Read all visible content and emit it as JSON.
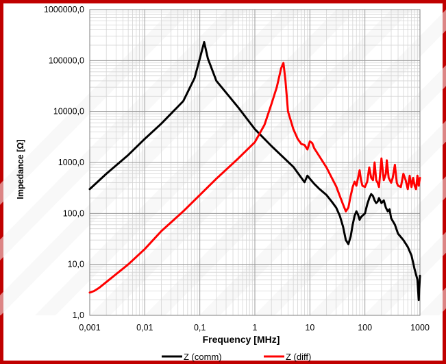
{
  "chart_data": {
    "type": "line",
    "title": "",
    "xlabel": "Frequency  [MHz]",
    "ylabel": "Impedance [Ω]",
    "x_scale": "log",
    "y_scale": "log",
    "xlim": [
      0.001,
      1000
    ],
    "ylim": [
      1,
      1000000
    ],
    "grid": true,
    "legend_placement": "bottom",
    "x_tick_labels": [
      "0,001",
      "0,01",
      "0,1",
      "1",
      "10",
      "100",
      "1000"
    ],
    "y_tick_labels": [
      "1,0",
      "10,0",
      "100,0",
      "1000,0",
      "10000,0",
      "100000,0",
      "1000000,0"
    ],
    "series": [
      {
        "name": "Z  (comm)",
        "color": "#000000",
        "x": [
          0.001,
          0.002,
          0.005,
          0.01,
          0.02,
          0.05,
          0.08,
          0.1,
          0.12,
          0.14,
          0.2,
          0.5,
          1,
          2,
          5,
          8,
          9,
          10,
          12,
          15,
          20,
          25,
          30,
          35,
          40,
          45,
          50,
          55,
          60,
          65,
          70,
          75,
          80,
          85,
          90,
          100,
          110,
          120,
          130,
          140,
          150,
          160,
          170,
          180,
          200,
          220,
          240,
          260,
          280,
          300,
          350,
          400,
          500,
          600,
          700,
          800,
          900,
          950,
          1000
        ],
        "y": [
          300,
          600,
          1400,
          2900,
          5800,
          16000,
          45000,
          110000,
          230000,
          110000,
          40000,
          12000,
          4500,
          2100,
          820,
          410,
          550,
          480,
          380,
          300,
          230,
          170,
          130,
          90,
          55,
          30,
          25,
          35,
          60,
          90,
          110,
          95,
          75,
          85,
          90,
          100,
          150,
          200,
          240,
          220,
          180,
          160,
          170,
          200,
          160,
          180,
          130,
          110,
          120,
          80,
          60,
          40,
          30,
          22,
          15,
          8,
          5,
          2,
          6
        ]
      },
      {
        "name": "Z (diff)",
        "color": "#ff0000",
        "x": [
          0.001,
          0.0012,
          0.0015,
          0.002,
          0.005,
          0.01,
          0.02,
          0.05,
          0.1,
          0.2,
          0.5,
          1,
          1.5,
          2,
          2.5,
          3,
          3.3,
          3.6,
          4,
          5,
          6,
          7,
          8,
          9,
          10,
          11,
          12,
          15,
          20,
          25,
          30,
          35,
          40,
          45,
          50,
          55,
          60,
          65,
          70,
          75,
          80,
          85,
          90,
          100,
          110,
          120,
          130,
          140,
          150,
          160,
          170,
          180,
          200,
          220,
          240,
          250,
          270,
          300,
          320,
          350,
          380,
          400,
          450,
          500,
          550,
          600,
          650,
          700,
          750,
          800,
          850,
          900,
          950,
          1000
        ],
        "y": [
          2.8,
          3.0,
          3.5,
          4.5,
          10,
          20,
          45,
          110,
          230,
          480,
          1200,
          2500,
          5500,
          14000,
          30000,
          70000,
          90000,
          40000,
          10000,
          4500,
          2900,
          2300,
          2200,
          1800,
          2600,
          2400,
          1900,
          1300,
          800,
          500,
          340,
          220,
          150,
          110,
          130,
          220,
          330,
          420,
          350,
          500,
          700,
          450,
          350,
          330,
          420,
          800,
          500,
          450,
          1000,
          450,
          400,
          330,
          1200,
          450,
          600,
          1100,
          500,
          400,
          500,
          900,
          400,
          350,
          330,
          600,
          450,
          300,
          550,
          330,
          500,
          350,
          300,
          550,
          350,
          500
        ]
      }
    ]
  }
}
